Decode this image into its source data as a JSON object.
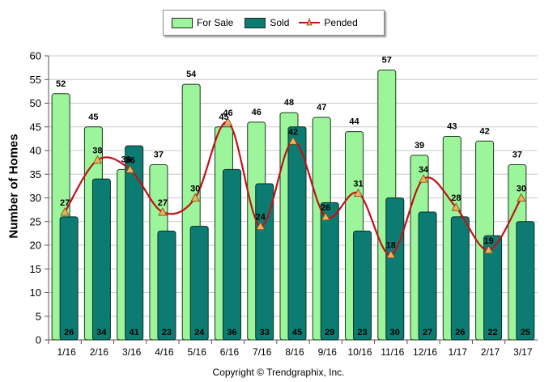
{
  "legend": {
    "for_sale": "For Sale",
    "sold": "Sold",
    "pended": "Pended"
  },
  "copyright": "Copyright © Trendgraphix, Inc.",
  "colors": {
    "for_sale": "#9cf59a",
    "sold": "#0c7c72",
    "pended": "#c0121a",
    "grid": "#c8c8c8"
  },
  "chart_data": {
    "type": "bar",
    "title": "",
    "xlabel": "",
    "ylabel": "Number of Homes",
    "ylim": [
      0,
      60
    ],
    "yticks": [
      0,
      5,
      10,
      15,
      20,
      25,
      30,
      35,
      40,
      45,
      50,
      55,
      60
    ],
    "grid": true,
    "legend_position": "top-center",
    "categories": [
      "1/16",
      "2/16",
      "3/16",
      "4/16",
      "5/16",
      "6/16",
      "7/16",
      "8/16",
      "9/16",
      "10/16",
      "11/16",
      "12/16",
      "1/17",
      "2/17",
      "3/17"
    ],
    "series": [
      {
        "name": "For Sale",
        "type": "bar",
        "values": [
          52,
          45,
          36,
          37,
          54,
          45,
          46,
          48,
          47,
          44,
          57,
          39,
          43,
          42,
          37
        ]
      },
      {
        "name": "Sold",
        "type": "bar",
        "values": [
          26,
          34,
          41,
          23,
          24,
          36,
          33,
          45,
          29,
          23,
          30,
          27,
          26,
          22,
          25
        ]
      },
      {
        "name": "Pended",
        "type": "line",
        "values": [
          27,
          38,
          36,
          27,
          30,
          46,
          24,
          42,
          26,
          31,
          18,
          34,
          28,
          19,
          30
        ]
      }
    ]
  }
}
